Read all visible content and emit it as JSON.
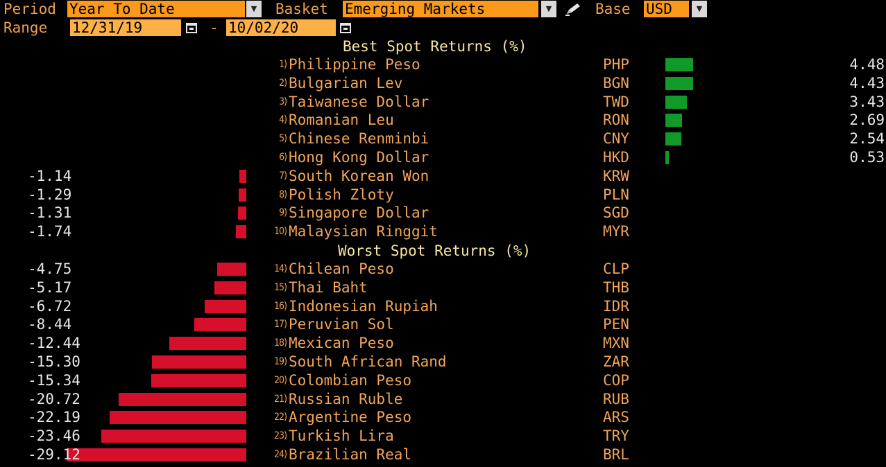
{
  "controls": {
    "period_label": "Period",
    "period_value": "Year To Date",
    "basket_label": "Basket",
    "basket_value": "Emerging Markets",
    "base_label": "Base",
    "base_value": "USD",
    "range_label": "Range",
    "range_start": "12/31/19",
    "range_dash": "-",
    "range_end": "10/02/20"
  },
  "colors": {
    "gain_bar": "#119a2a",
    "loss_bar": "#d6102a",
    "accent_field": "#fb9a1a"
  },
  "best": {
    "title": "Best Spot Returns (%)",
    "rows": [
      {
        "n": "1)",
        "name": "Philippine Peso",
        "code": "PHP",
        "value": "4.48",
        "v": 4.48
      },
      {
        "n": "2)",
        "name": "Bulgarian Lev",
        "code": "BGN",
        "value": "4.43",
        "v": 4.43
      },
      {
        "n": "3)",
        "name": "Taiwanese Dollar",
        "code": "TWD",
        "value": "3.43",
        "v": 3.43
      },
      {
        "n": "4)",
        "name": "Romanian Leu",
        "code": "RON",
        "value": "2.69",
        "v": 2.69
      },
      {
        "n": "5)",
        "name": "Chinese Renminbi",
        "code": "CNY",
        "value": "2.54",
        "v": 2.54
      },
      {
        "n": "6)",
        "name": "Hong Kong Dollar",
        "code": "HKD",
        "value": "0.53",
        "v": 0.53
      },
      {
        "n": "7)",
        "name": "South Korean Won",
        "code": "KRW",
        "value": "-1.14",
        "v": -1.14
      },
      {
        "n": "8)",
        "name": "Polish Zloty",
        "code": "PLN",
        "value": "-1.29",
        "v": -1.29
      },
      {
        "n": "9)",
        "name": "Singapore Dollar",
        "code": "SGD",
        "value": "-1.31",
        "v": -1.31
      },
      {
        "n": "10)",
        "name": "Malaysian Ringgit",
        "code": "MYR",
        "value": "-1.74",
        "v": -1.74
      }
    ]
  },
  "worst": {
    "title": "Worst Spot Returns (%)",
    "rows": [
      {
        "n": "14)",
        "name": "Chilean Peso",
        "code": "CLP",
        "value": "-4.75",
        "v": -4.75
      },
      {
        "n": "15)",
        "name": "Thai Baht",
        "code": "THB",
        "value": "-5.17",
        "v": -5.17
      },
      {
        "n": "16)",
        "name": "Indonesian Rupiah",
        "code": "IDR",
        "value": "-6.72",
        "v": -6.72
      },
      {
        "n": "17)",
        "name": "Peruvian Sol",
        "code": "PEN",
        "value": "-8.44",
        "v": -8.44
      },
      {
        "n": "18)",
        "name": "Mexican Peso",
        "code": "MXN",
        "value": "-12.44",
        "v": -12.44
      },
      {
        "n": "19)",
        "name": "South African Rand",
        "code": "ZAR",
        "value": "-15.30",
        "v": -15.3
      },
      {
        "n": "20)",
        "name": "Colombian Peso",
        "code": "COP",
        "value": "-15.34",
        "v": -15.34
      },
      {
        "n": "21)",
        "name": "Russian Ruble",
        "code": "RUB",
        "value": "-20.72",
        "v": -20.72
      },
      {
        "n": "22)",
        "name": "Argentine Peso",
        "code": "ARS",
        "value": "-22.19",
        "v": -22.19
      },
      {
        "n": "23)",
        "name": "Turkish Lira",
        "code": "TRY",
        "value": "-23.46",
        "v": -23.46
      },
      {
        "n": "24)",
        "name": "Brazilian Real",
        "code": "BRL",
        "value": "-29.12",
        "v": -29.12
      }
    ]
  }
}
